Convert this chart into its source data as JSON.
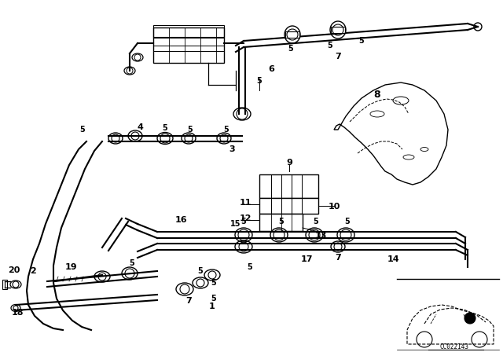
{
  "bg_color": "#ffffff",
  "line_color": "#000000",
  "figsize": [
    6.4,
    4.48
  ],
  "dpi": 100
}
